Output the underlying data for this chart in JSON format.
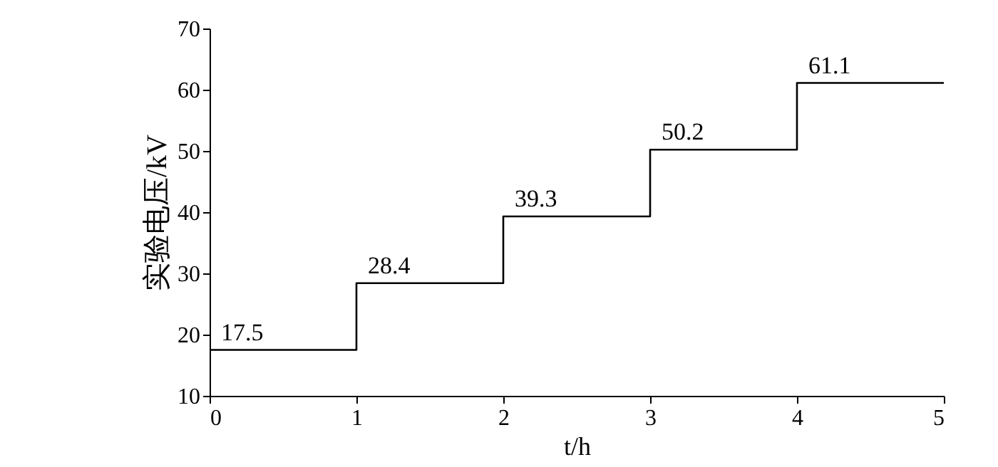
{
  "chart_data": {
    "type": "step",
    "xlabel": "t/h",
    "ylabel": "实验电压/kV",
    "x": [
      0,
      1,
      2,
      3,
      4,
      5
    ],
    "values": [
      17.5,
      28.4,
      39.3,
      50.2,
      61.1,
      61.1
    ],
    "value_labels": [
      "17.5",
      "28.4",
      "39.3",
      "50.2",
      "61.1",
      null
    ],
    "color": "#000000",
    "xlim": [
      0,
      5
    ],
    "xticks": [
      0,
      1,
      2,
      3,
      4,
      5
    ],
    "ylim": [
      10,
      70
    ],
    "yticks": [
      10,
      20,
      30,
      40,
      50,
      60,
      70
    ],
    "grid": false,
    "marker": "none",
    "line_style": "solid"
  }
}
